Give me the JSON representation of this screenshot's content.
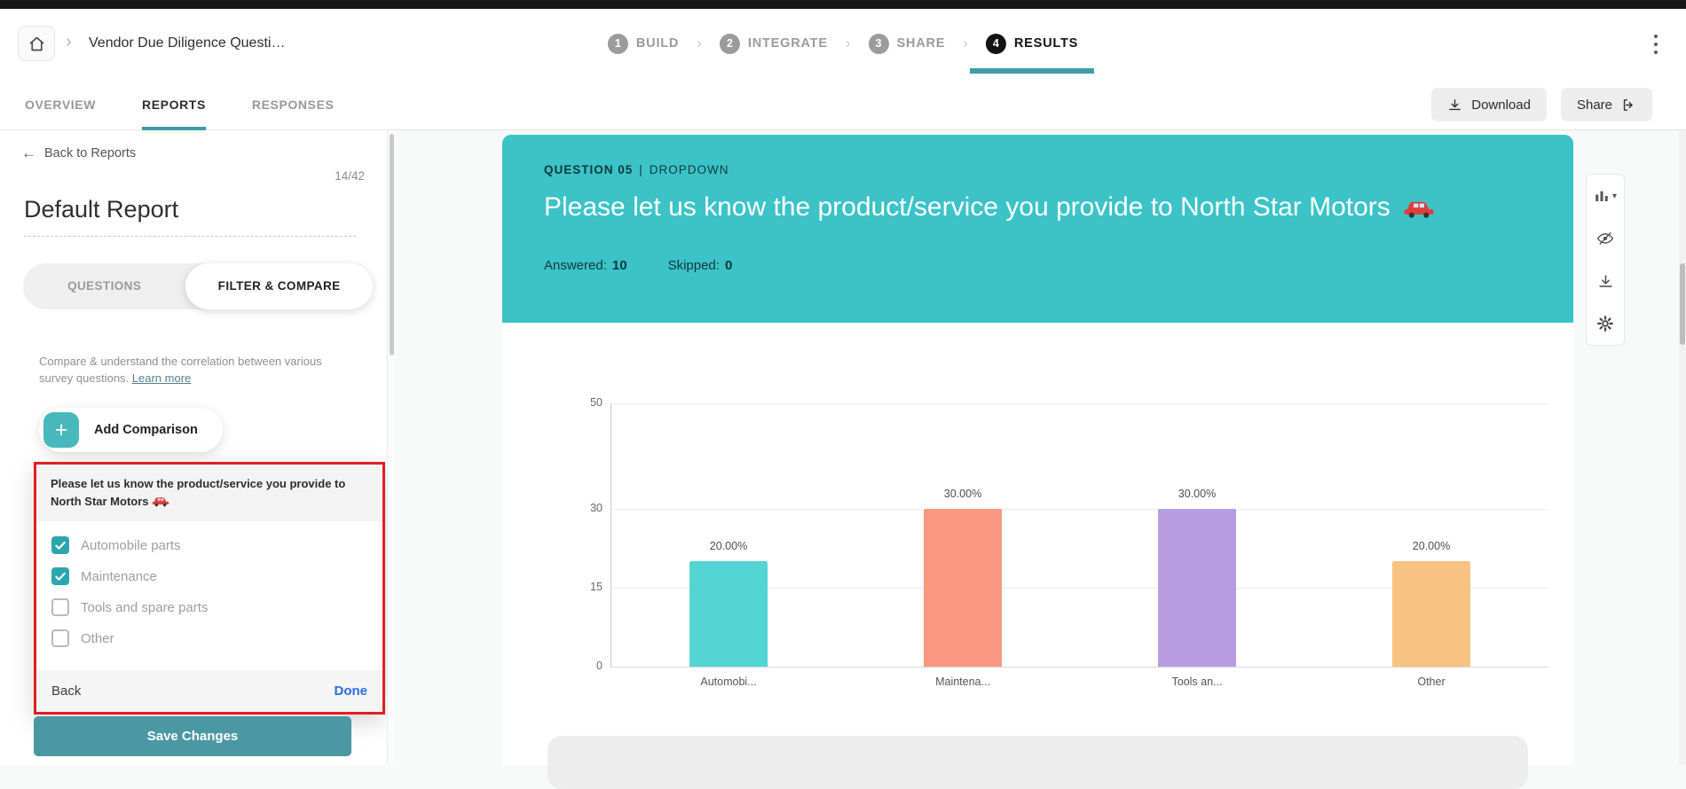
{
  "colors": {
    "accent": "#3f9ea8",
    "card-teal": "#3bc3c7",
    "save-teal": "#4a98a3",
    "checkbox-teal": "#2ba6ad",
    "plus-teal": "#47b9bd",
    "highlight-red": "#e01f1f",
    "done-blue": "#2c6ce5"
  },
  "icons": {
    "chevron_right": "›",
    "back_arrow": "←",
    "plus": "+",
    "caret_down": "▾",
    "car_emoji": "🚗",
    "home": "home-icon",
    "kebab": "three-dot-menu"
  },
  "topbar": {
    "breadcrumb": "Vendor Due Diligence Questi…",
    "steps": [
      {
        "num": "1",
        "label": "BUILD",
        "active": false
      },
      {
        "num": "2",
        "label": "INTEGRATE",
        "active": false
      },
      {
        "num": "3",
        "label": "SHARE",
        "active": false
      },
      {
        "num": "4",
        "label": "RESULTS",
        "active": true
      }
    ]
  },
  "tabs": {
    "items": [
      {
        "label": "OVERVIEW",
        "active": false
      },
      {
        "label": "REPORTS",
        "active": true
      },
      {
        "label": "RESPONSES",
        "active": false
      }
    ],
    "download_label": "Download",
    "share_label": "Share"
  },
  "sidebar": {
    "back_label": "Back to Reports",
    "counter": "14/42",
    "report_title": "Default Report",
    "tab_questions": "QUESTIONS",
    "tab_filter": "FILTER & COMPARE",
    "compare_text": "Compare & understand the correlation between various survey questions. ",
    "learn_more_label": "Learn more",
    "add_comparison_label": "Add Comparison",
    "filter_panel": {
      "question": "Please let us know the product/service you provide to North Star Motors",
      "options": [
        {
          "label": "Automobile parts",
          "checked": true
        },
        {
          "label": "Maintenance",
          "checked": true
        },
        {
          "label": "Tools and spare parts",
          "checked": false
        },
        {
          "label": "Other",
          "checked": false
        }
      ],
      "back_label": "Back",
      "done_label": "Done"
    },
    "save_button_label": "Save Changes"
  },
  "main": {
    "question_number": "QUESTION 05",
    "meta_separator": "|",
    "question_type": "DROPDOWN",
    "question_title": "Please let us know the product/service you provide to North Star Motors",
    "answered_label": "Answered:",
    "answered_value": "10",
    "skipped_label": "Skipped:",
    "skipped_value": "0"
  },
  "chart_data": {
    "type": "bar",
    "title": "",
    "xlabel": "",
    "ylabel": "",
    "categories": [
      "Automobi...",
      "Maintena...",
      "Tools an...",
      "Other"
    ],
    "values": [
      20,
      30,
      30,
      20
    ],
    "value_labels": [
      "20.00%",
      "30.00%",
      "30.00%",
      "20.00%"
    ],
    "unit": "%",
    "yticks": [
      0,
      15,
      30,
      50
    ],
    "ylim": [
      0,
      50
    ],
    "grid": true,
    "legend": false,
    "bar_colors": [
      "#55d4d4",
      "#f8997f",
      "#b69de2",
      "#f6c480"
    ]
  }
}
